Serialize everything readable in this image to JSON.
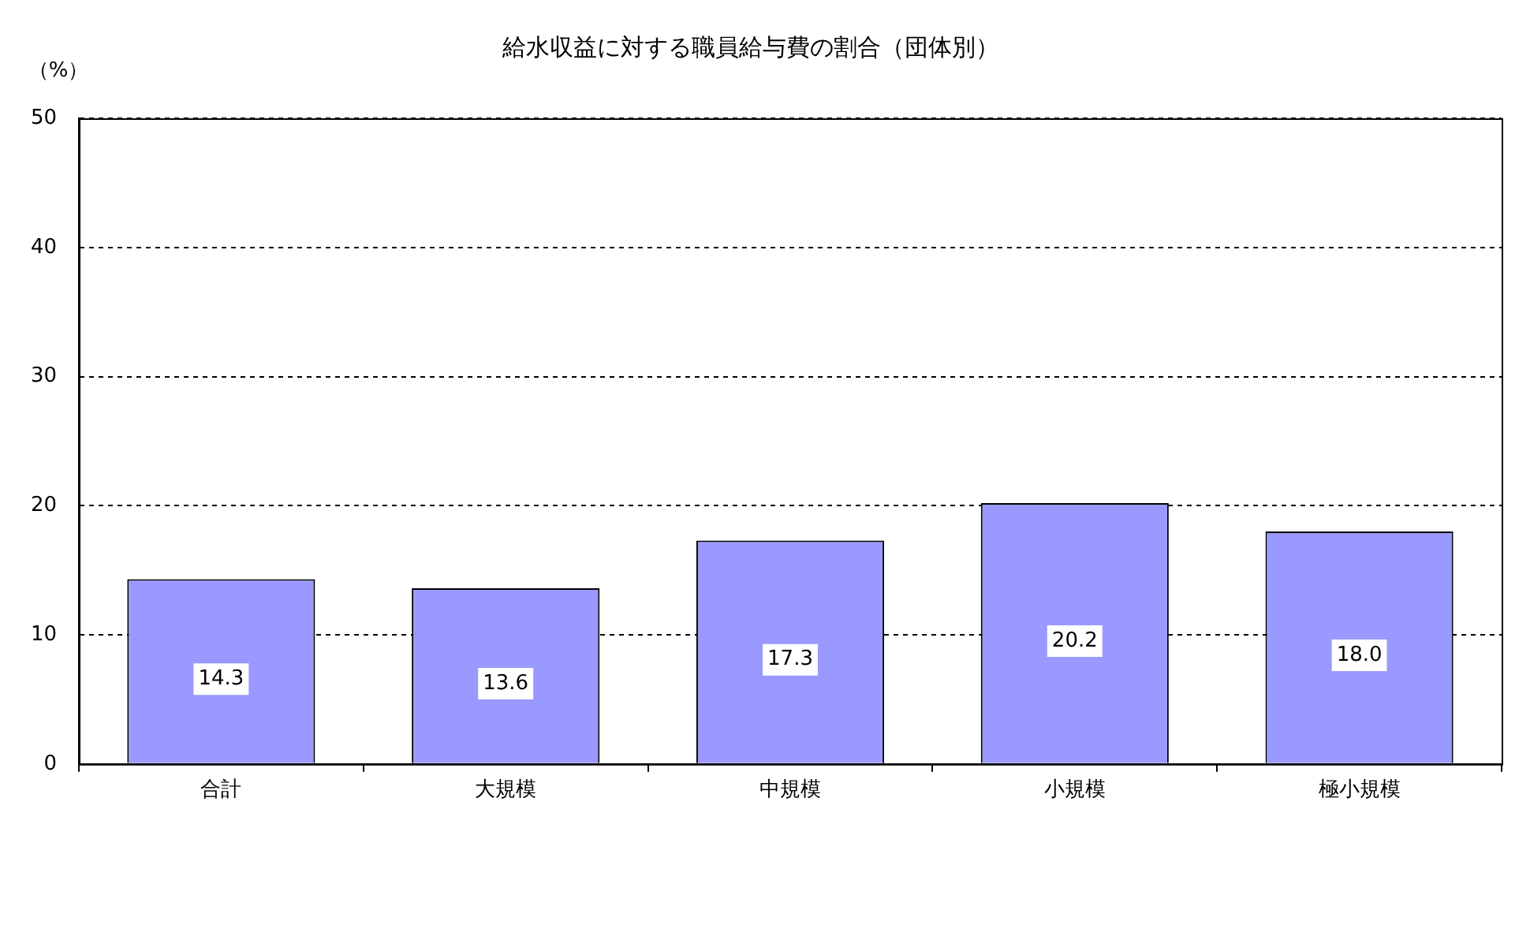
{
  "chart_data": {
    "type": "bar",
    "title": "給水収益に対する職員給与費の割合（団体別）",
    "ylabel": "（%）",
    "categories": [
      "合計",
      "大規模",
      "中規模",
      "小規模",
      "極小規模"
    ],
    "values": [
      14.3,
      13.6,
      17.3,
      20.2,
      18.0
    ],
    "value_labels": [
      "14.3",
      "13.6",
      "17.3",
      "20.2",
      "18.0"
    ],
    "color": "#9999ff",
    "ylim": [
      0,
      50
    ],
    "yticks": [
      0,
      10,
      20,
      30,
      40,
      50
    ],
    "grid": "y"
  }
}
